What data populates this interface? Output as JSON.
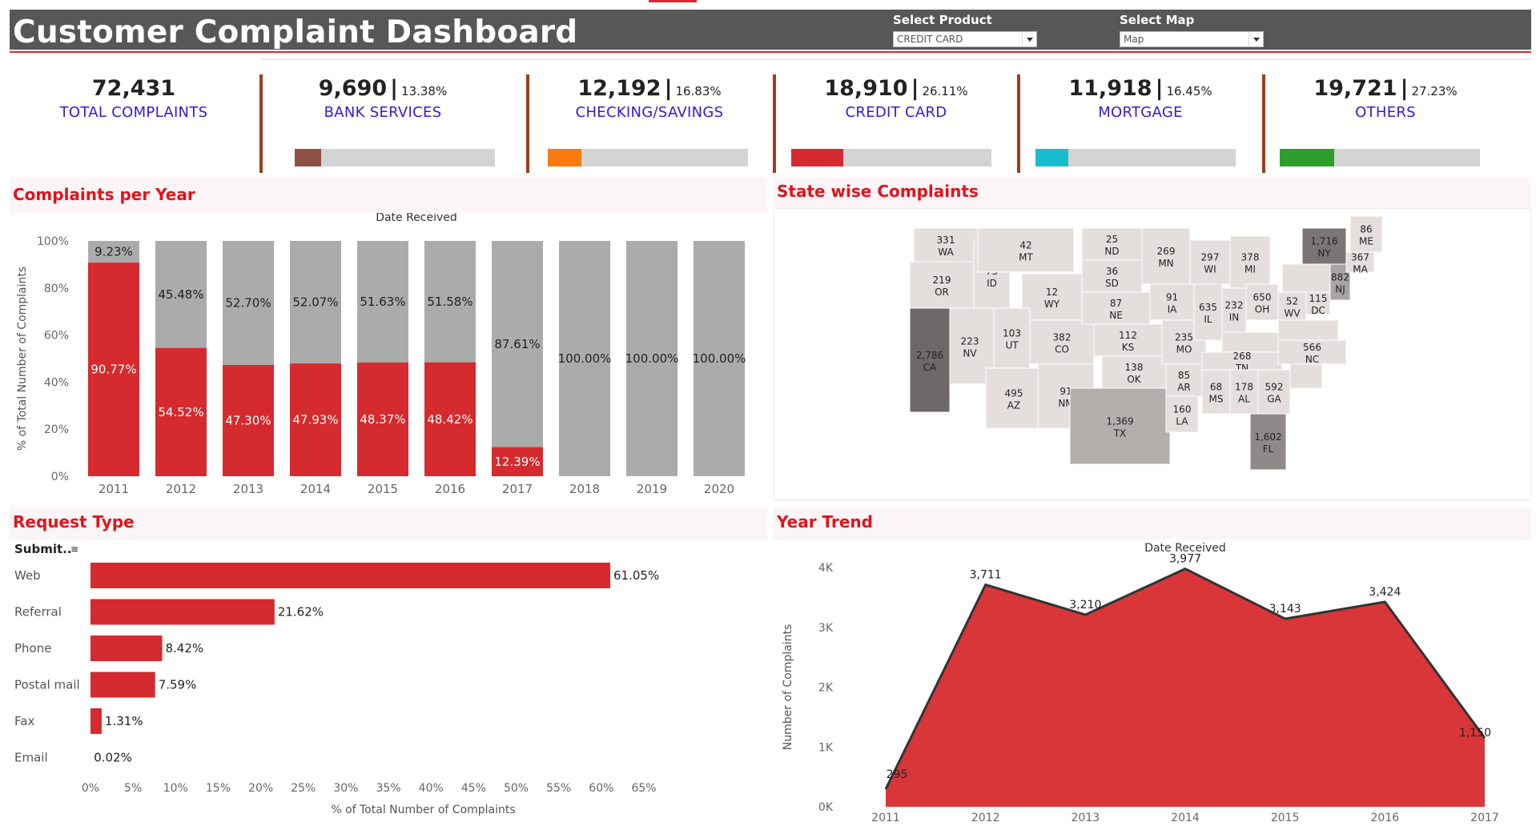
{
  "header": {
    "title": "Customer Complaint Dashboard",
    "product_filter": {
      "label": "Select Product",
      "value": "CREDIT CARD"
    },
    "map_filter": {
      "label": "Select Map",
      "value": "Map"
    }
  },
  "kpis": [
    {
      "value": "72,431",
      "pct": "",
      "label": "TOTAL COMPLAINTS",
      "fraction": null,
      "color": ""
    },
    {
      "value": "9,690",
      "pct": "13.38%",
      "label": "BANK SERVICES",
      "fraction": 0.1338,
      "color": "#8e5046"
    },
    {
      "value": "12,192",
      "pct": "16.83%",
      "label": "CHECKING/SAVINGS",
      "fraction": 0.1683,
      "color": "#fa7c10"
    },
    {
      "value": "18,910",
      "pct": "26.11%",
      "label": "CREDIT CARD",
      "fraction": 0.2611,
      "color": "#d52a2e"
    },
    {
      "value": "11,918",
      "pct": "16.45%",
      "label": "MORTGAGE",
      "fraction": 0.1645,
      "color": "#18bccf"
    },
    {
      "value": "19,721",
      "pct": "27.23%",
      "label": "OTHERS",
      "fraction": 0.2723,
      "color": "#2b9e2e"
    }
  ],
  "sections": {
    "per_year": "Complaints per Year",
    "state": "State wise Complaints",
    "request": "Request Type",
    "trend": "Year Trend"
  },
  "chart_data": [
    {
      "type": "bar",
      "stacked": true,
      "title": "Date Received",
      "ylabel": "% of Total Number of Complaints",
      "categories": [
        "2011",
        "2012",
        "2013",
        "2014",
        "2015",
        "2016",
        "2017",
        "2018",
        "2019",
        "2020"
      ],
      "series": [
        {
          "values": [
            90.77,
            54.52,
            47.3,
            47.93,
            48.37,
            48.42,
            12.39,
            0,
            0,
            0
          ],
          "color": "#d52a2e"
        },
        {
          "values": [
            9.23,
            45.48,
            52.7,
            52.07,
            51.63,
            51.58,
            87.61,
            100,
            100,
            100
          ],
          "color": "#a9acab"
        }
      ],
      "labels_bottom": [
        "90.77%",
        "54.52%",
        "47.30%",
        "47.93%",
        "48.37%",
        "48.42%",
        "12.39%",
        "",
        "",
        ""
      ],
      "labels_top": [
        "9.23%",
        "45.48%",
        "52.70%",
        "52.07%",
        "51.63%",
        "51.58%",
        "87.61%",
        "100.00%",
        "100.00%",
        "100.00%"
      ],
      "yticks": [
        "0%",
        "20%",
        "40%",
        "60%",
        "80%",
        "100%"
      ],
      "ylim": [
        0,
        100
      ]
    },
    {
      "type": "bar",
      "orientation": "horizontal",
      "xlabel": "% of Total Number of Complaints",
      "header": "Submit..",
      "categories": [
        "Web",
        "Referral",
        "Phone",
        "Postal mail",
        "Fax",
        "Email"
      ],
      "values": [
        61.05,
        21.62,
        8.42,
        7.59,
        1.31,
        0.02
      ],
      "value_labels": [
        "61.05%",
        "21.62%",
        "8.42%",
        "7.59%",
        "1.31%",
        "0.02%"
      ],
      "xticks": [
        "0%",
        "5%",
        "10%",
        "15%",
        "20%",
        "25%",
        "30%",
        "35%",
        "40%",
        "45%",
        "50%",
        "55%",
        "60%",
        "65%"
      ],
      "xlim": [
        0,
        65
      ],
      "color": "#d52a2e"
    },
    {
      "type": "area",
      "title": "Date Received",
      "ylabel": "Number of Complaints",
      "categories": [
        "2011",
        "2012",
        "2013",
        "2014",
        "2015",
        "2016",
        "2017"
      ],
      "values": [
        295,
        3711,
        3210,
        3977,
        3143,
        3424,
        1150
      ],
      "value_labels": [
        "295",
        "3,711",
        "3,210",
        "3,977",
        "3,143",
        "3,424",
        "1,150"
      ],
      "yticks": [
        "0K",
        "1K",
        "2K",
        "3K",
        "4K"
      ],
      "ylim": [
        0,
        4000
      ],
      "color": "#d9363a"
    },
    {
      "type": "map",
      "region": "United States",
      "states": [
        {
          "code": "WA",
          "value": "331"
        },
        {
          "code": "OR",
          "value": "219"
        },
        {
          "code": "ID",
          "value": "73"
        },
        {
          "code": "MT",
          "value": "42"
        },
        {
          "code": "WY",
          "value": "12"
        },
        {
          "code": "NV",
          "value": "223"
        },
        {
          "code": "CA",
          "value": "2,786"
        },
        {
          "code": "UT",
          "value": "103"
        },
        {
          "code": "AZ",
          "value": "495"
        },
        {
          "code": "CO",
          "value": "382"
        },
        {
          "code": "NM",
          "value": "91"
        },
        {
          "code": "ND",
          "value": "25"
        },
        {
          "code": "SD",
          "value": "36"
        },
        {
          "code": "NE",
          "value": "87"
        },
        {
          "code": "KS",
          "value": "112"
        },
        {
          "code": "OK",
          "value": "138"
        },
        {
          "code": "TX",
          "value": "1,369"
        },
        {
          "code": "MN",
          "value": "269"
        },
        {
          "code": "IA",
          "value": "91"
        },
        {
          "code": "MO",
          "value": "235"
        },
        {
          "code": "AR",
          "value": "85"
        },
        {
          "code": "LA",
          "value": "160"
        },
        {
          "code": "WI",
          "value": "297"
        },
        {
          "code": "IL",
          "value": "635"
        },
        {
          "code": "MI",
          "value": "378"
        },
        {
          "code": "IN",
          "value": "232"
        },
        {
          "code": "OH",
          "value": "650"
        },
        {
          "code": "KY",
          "value": ""
        },
        {
          "code": "TN",
          "value": "268"
        },
        {
          "code": "MS",
          "value": "68"
        },
        {
          "code": "AL",
          "value": "178"
        },
        {
          "code": "GA",
          "value": "592"
        },
        {
          "code": "FL",
          "value": "1,602"
        },
        {
          "code": "SC",
          "value": ""
        },
        {
          "code": "NC",
          "value": "566"
        },
        {
          "code": "VA",
          "value": ""
        },
        {
          "code": "WV",
          "value": "52"
        },
        {
          "code": "DC",
          "value": "115"
        },
        {
          "code": "NJ",
          "value": "882"
        },
        {
          "code": "NY",
          "value": "1,716"
        },
        {
          "code": "PA",
          "value": ""
        },
        {
          "code": "MA",
          "value": "367"
        },
        {
          "code": "ME",
          "value": "86"
        }
      ]
    }
  ]
}
